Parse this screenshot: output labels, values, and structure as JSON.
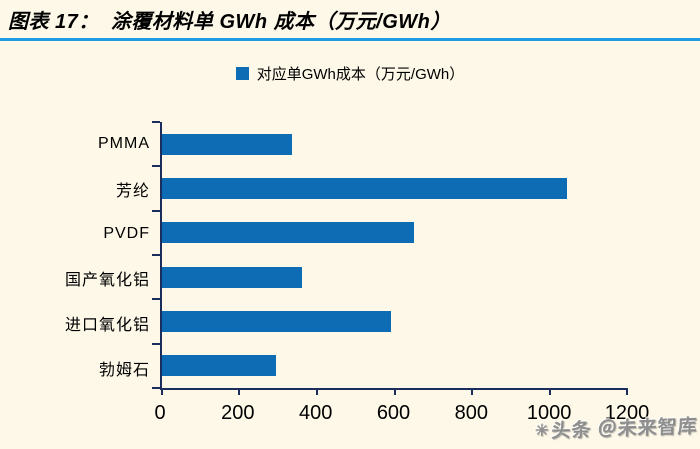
{
  "header": {
    "title": "图表 17：  涂覆材料单 GWh 成本（万元/GWh）"
  },
  "legend": {
    "label": "对应单GWh成本（万元/GWh）"
  },
  "watermark": {
    "logo_icon": "✳",
    "text": "头条 ＠未来智库"
  },
  "colors": {
    "background": "#FDF8E8",
    "bar": "#0E6CB4",
    "accent_rule": "#1E9BE4",
    "axis": "#1B2D5C",
    "text": "#000000",
    "watermark": "#828282"
  },
  "chart_data": {
    "type": "bar",
    "orientation": "horizontal",
    "title": "图表 17：涂覆材料单 GWh 成本（万元/GWh）",
    "series_name": "对应单GWh成本（万元/GWh）",
    "categories": [
      "PMMA",
      "芳纶",
      "PVDF",
      "国产氧化铝",
      "进口氧化铝",
      "勃姆石"
    ],
    "values": [
      335,
      1045,
      650,
      360,
      592,
      295
    ],
    "xlabel": "",
    "ylabel": "",
    "xlim": [
      0,
      1200
    ],
    "x_ticks": [
      0,
      200,
      400,
      600,
      800,
      1000,
      1200
    ],
    "grid": false,
    "legend_position": "top-center"
  }
}
